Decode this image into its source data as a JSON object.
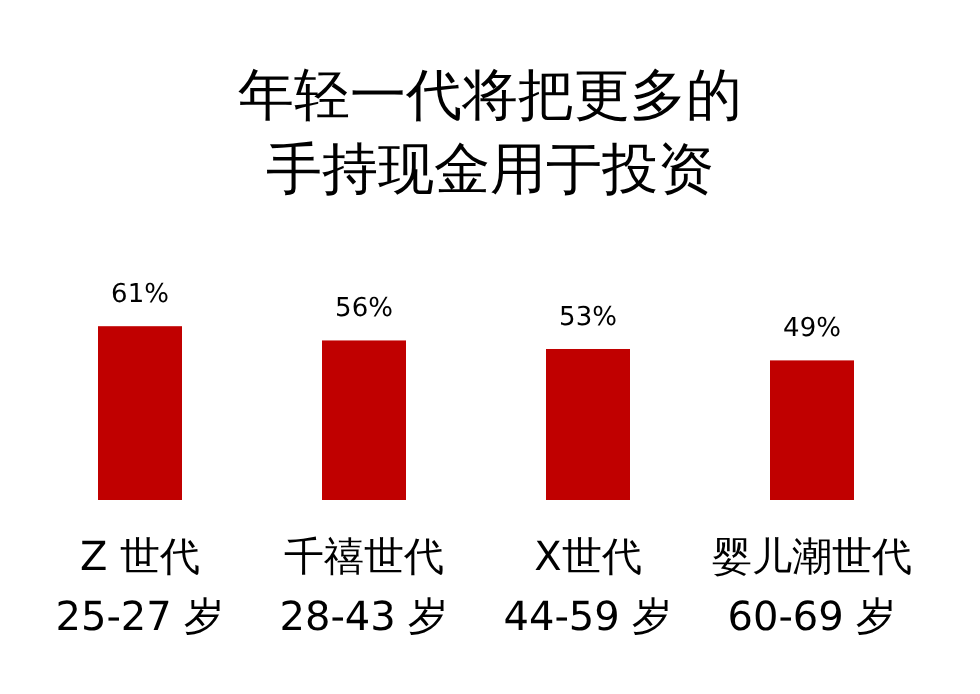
{
  "chart_data": {
    "type": "bar",
    "title": "年轻一代将把更多的手持现金用于投资",
    "categories": [
      "Z 世代\n25-27 岁",
      "千禧世代\n28-43 岁",
      "X世代\n44-59 岁",
      "婴儿潮世代\n60-69 岁"
    ],
    "values": [
      61,
      56,
      53,
      49
    ],
    "color": "#c00000",
    "value_labels": [
      "61%",
      "56%",
      "53%",
      "49%"
    ]
  }
}
